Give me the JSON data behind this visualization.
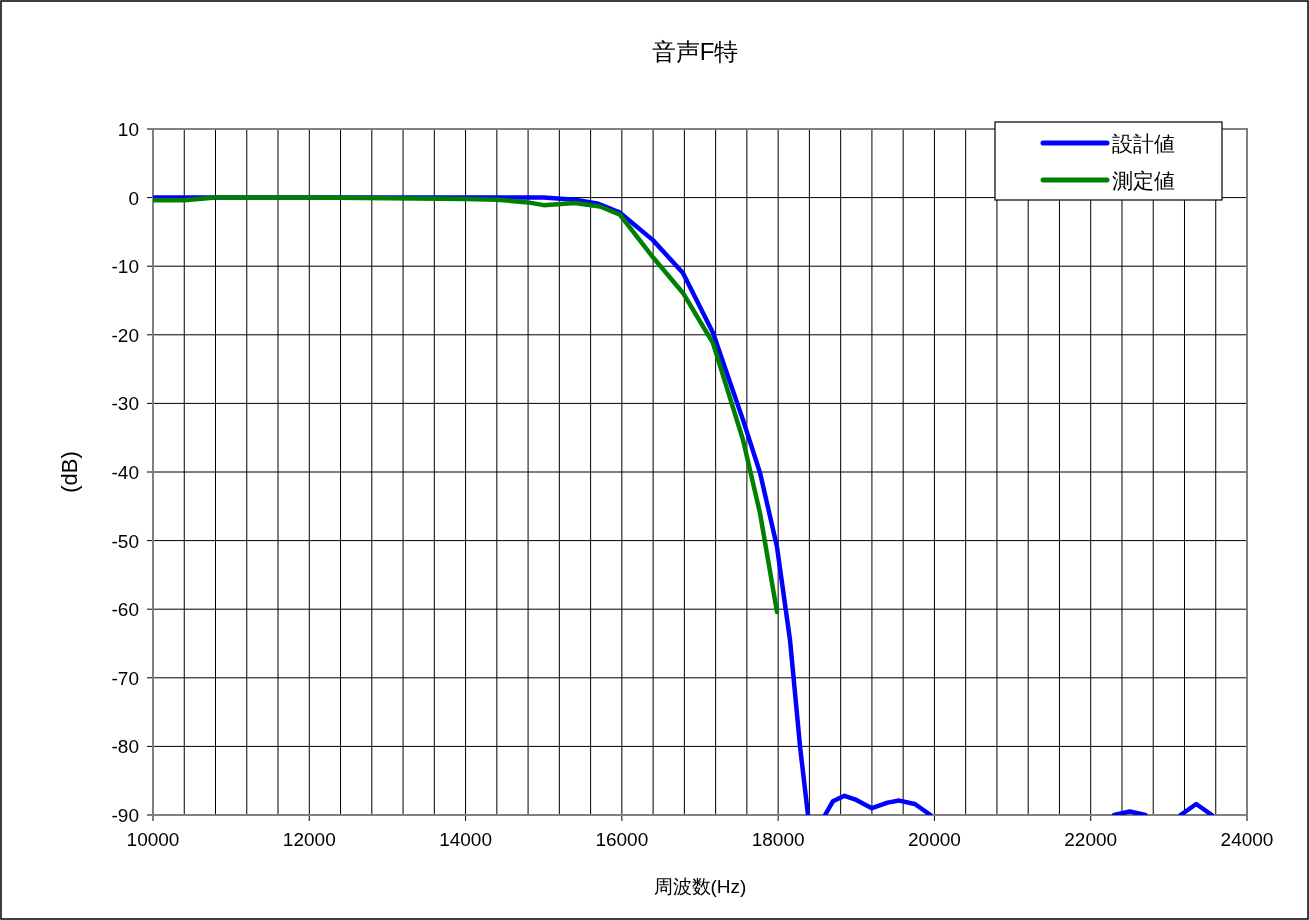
{
  "chart_data": {
    "type": "line",
    "title": "音声F特",
    "xlabel": "周波数(Hz)",
    "ylabel": "(dB)",
    "xlim": [
      10000,
      24000
    ],
    "xticks": [
      10000,
      {
        "value": 10400,
        "label": null
      },
      {
        "value": 10800,
        "label": null
      },
      {
        "value": 11200,
        "label": null
      },
      {
        "value": 11600,
        "label": null
      },
      12000,
      {
        "value": 12400,
        "label": null
      },
      {
        "value": 12800,
        "label": null
      },
      {
        "value": 13200,
        "label": null
      },
      {
        "value": 13600,
        "label": null
      },
      14000,
      {
        "value": 14400,
        "label": null
      },
      {
        "value": 14800,
        "label": null
      },
      {
        "value": 15200,
        "label": null
      },
      {
        "value": 15600,
        "label": null
      },
      16000,
      {
        "value": 16400,
        "label": null
      },
      {
        "value": 16800,
        "label": null
      },
      {
        "value": 17200,
        "label": null
      },
      {
        "value": 17600,
        "label": null
      },
      18000,
      {
        "value": 18400,
        "label": null
      },
      {
        "value": 18800,
        "label": null
      },
      {
        "value": 19200,
        "label": null
      },
      {
        "value": 19600,
        "label": null
      },
      20000,
      {
        "value": 20400,
        "label": null
      },
      {
        "value": 20800,
        "label": null
      },
      {
        "value": 21200,
        "label": null
      },
      {
        "value": 21600,
        "label": null
      },
      22000,
      {
        "value": 22400,
        "label": null
      },
      {
        "value": 22800,
        "label": null
      },
      {
        "value": 23200,
        "label": null
      },
      {
        "value": 23600,
        "label": null
      },
      24000
    ],
    "ylim": [
      -90,
      10
    ],
    "yticks": [
      -90,
      -80,
      -70,
      -60,
      -50,
      -40,
      -30,
      -20,
      -10,
      0,
      10
    ],
    "grid": true,
    "legend": "top right",
    "line_style": "solid",
    "marker": "none",
    "series": [
      {
        "name": "設計値",
        "color": "#0000ff",
        "x": [
          10000,
          12000,
          14000,
          15000,
          15400,
          15700,
          15976,
          16398,
          16782,
          17166,
          17550,
          17768,
          17985,
          18152,
          18280,
          18382,
          null,
          18600,
          18700,
          18850,
          19000,
          19200,
          19400,
          19550,
          19750,
          19950,
          null,
          22300,
          22500,
          22700,
          null,
          23150,
          23350,
          23550
        ],
        "values": [
          0,
          0,
          0,
          0,
          -0.3,
          -0.9,
          -2.2,
          -6.2,
          -11,
          -19.7,
          -32.4,
          -40.1,
          -50.9,
          -64.5,
          -80,
          -90,
          null,
          -90,
          -88,
          -87.2,
          -87.8,
          -89,
          -88.2,
          -87.9,
          -88.4,
          -90,
          null,
          -90,
          -89.5,
          -90,
          null,
          -90,
          -88.4,
          -90
        ]
      },
      {
        "name": "測定値",
        "color": "#008000",
        "x": [
          10000,
          10400,
          10800,
          12000,
          14000,
          14400,
          14800,
          15000,
          15400,
          15720,
          15976,
          16398,
          16782,
          17166,
          17550,
          17768,
          17985
        ],
        "values": [
          -0.4,
          -0.4,
          0,
          0,
          -0.2,
          -0.3,
          -0.7,
          -1.1,
          -0.8,
          -1.3,
          -2.5,
          -8.7,
          -13.9,
          -21.2,
          -35.3,
          -46,
          -60.4
        ]
      }
    ]
  }
}
